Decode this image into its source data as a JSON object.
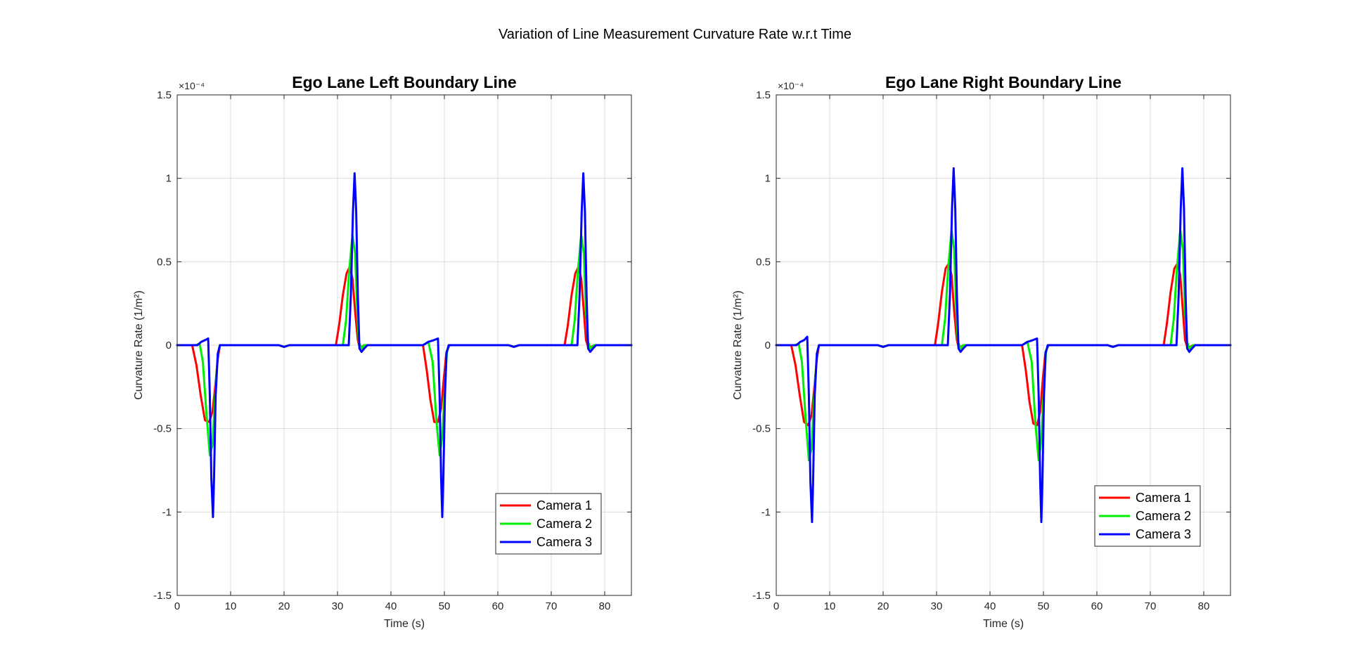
{
  "figure_title": "Variation of Line Measurement Curvature Rate w.r.t Time",
  "chart_data": [
    {
      "type": "line",
      "title": "Ego Lane Left Boundary Line",
      "xlabel": "Time (s)",
      "ylabel": "Curvature Rate (1/m²)",
      "y_multiplier": "×10⁻⁴",
      "xlim": [
        0,
        85
      ],
      "ylim": [
        -1.5,
        1.5
      ],
      "xticks": [
        0,
        10,
        20,
        30,
        40,
        50,
        60,
        70,
        80
      ],
      "yticks": [
        -1.5,
        -1,
        -0.5,
        0,
        0.5,
        1,
        1.5
      ],
      "ytick_labels": [
        "-1.5",
        "-1",
        "-0.5",
        "0",
        "0.5",
        "1",
        "1.5"
      ],
      "grid": true,
      "legend_position": "bottom-right",
      "series": [
        {
          "name": "Camera 1",
          "color": "#ff0000",
          "x": [
            0,
            2.8,
            3.6,
            4.4,
            5.2,
            6,
            6.6,
            7.1,
            7.6,
            8,
            19,
            20,
            21,
            29.7,
            30.3,
            31,
            31.7,
            32.3,
            32.8,
            33.3,
            33.8,
            34.2,
            35,
            46,
            46.7,
            47.4,
            48.1,
            48.8,
            49.4,
            49.9,
            50.4,
            51,
            62,
            63,
            64,
            72.5,
            73.1,
            73.8,
            74.5,
            75.1,
            75.6,
            76.1,
            76.5,
            77,
            78,
            85
          ],
          "y": [
            0,
            0,
            -0.12,
            -0.3,
            -0.45,
            -0.46,
            -0.4,
            -0.25,
            -0.08,
            0,
            0,
            -0.01,
            0,
            0,
            0.12,
            0.3,
            0.43,
            0.47,
            0.4,
            0.2,
            0.03,
            -0.02,
            0,
            0,
            -0.15,
            -0.33,
            -0.46,
            -0.46,
            -0.38,
            -0.2,
            -0.04,
            0,
            0,
            -0.01,
            0,
            0,
            0.12,
            0.3,
            0.43,
            0.47,
            0.4,
            0.2,
            0.03,
            -0.02,
            0,
            0
          ]
        },
        {
          "name": "Camera 2",
          "color": "#00ee00",
          "x": [
            0,
            3.5,
            4.2,
            4.8,
            5.5,
            6.1,
            6.6,
            7.1,
            7.6,
            8,
            19,
            20,
            21,
            31,
            31.6,
            32.2,
            32.8,
            33.3,
            33.7,
            34,
            34.5,
            35,
            46,
            47,
            47.8,
            48.5,
            49.1,
            49.6,
            50.1,
            50.5,
            51,
            62,
            63,
            64,
            73.8,
            74.4,
            75,
            75.6,
            76.1,
            76.5,
            76.9,
            77.3,
            78,
            85
          ],
          "y": [
            0,
            0,
            0.01,
            -0.1,
            -0.42,
            -0.66,
            -0.6,
            -0.3,
            -0.05,
            0,
            0,
            -0.01,
            0,
            0,
            0.15,
            0.45,
            0.66,
            0.55,
            0.2,
            0.02,
            -0.02,
            0,
            0,
            0.02,
            -0.1,
            -0.45,
            -0.66,
            -0.55,
            -0.25,
            -0.03,
            0,
            0,
            -0.01,
            0,
            0,
            0.15,
            0.45,
            0.66,
            0.55,
            0.2,
            0.02,
            -0.02,
            0,
            0
          ]
        },
        {
          "name": "Camera 3",
          "color": "#0000ff",
          "x": [
            0,
            3.8,
            4.5,
            5.2,
            5.8,
            6.1,
            6.4,
            6.7,
            6.9,
            7.2,
            7.6,
            8,
            19,
            20,
            21,
            32.1,
            32.5,
            32.9,
            33.2,
            33.5,
            33.8,
            34.1,
            34.5,
            35,
            35.6,
            46,
            47,
            48,
            48.8,
            49.1,
            49.4,
            49.6,
            49.8,
            50.1,
            50.4,
            50.8,
            62,
            63,
            64,
            74.9,
            75.3,
            75.7,
            76,
            76.3,
            76.6,
            76.9,
            77.3,
            77.8,
            78.4,
            85
          ],
          "y": [
            0,
            0,
            0.02,
            0.03,
            0.04,
            -0.3,
            -0.8,
            -1.03,
            -0.8,
            -0.3,
            -0.05,
            0,
            0,
            -0.01,
            0,
            0,
            0.3,
            0.8,
            1.03,
            0.8,
            0.3,
            -0.02,
            -0.04,
            -0.02,
            0,
            0,
            0.02,
            0.03,
            0.04,
            -0.3,
            -0.8,
            -1.03,
            -0.8,
            -0.3,
            -0.05,
            0,
            0,
            -0.01,
            0,
            0,
            0.3,
            0.8,
            1.03,
            0.8,
            0.3,
            -0.02,
            -0.04,
            -0.02,
            0,
            0
          ]
        }
      ]
    },
    {
      "type": "line",
      "title": "Ego Lane Right Boundary Line",
      "xlabel": "Time (s)",
      "ylabel": "Curvature Rate (1/m²)",
      "y_multiplier": "×10⁻⁴",
      "xlim": [
        0,
        85
      ],
      "ylim": [
        -1.5,
        1.5
      ],
      "xticks": [
        0,
        10,
        20,
        30,
        40,
        50,
        60,
        70,
        80
      ],
      "yticks": [
        -1.5,
        -1,
        -0.5,
        0,
        0.5,
        1,
        1.5
      ],
      "ytick_labels": [
        "-1.5",
        "-1",
        "-0.5",
        "0",
        "0.5",
        "1",
        "1.5"
      ],
      "grid": true,
      "legend_position": "bottom-right",
      "series": [
        {
          "name": "Camera 1",
          "color": "#ff0000",
          "x": [
            0,
            2.8,
            3.6,
            4.4,
            5.2,
            6,
            6.6,
            7.1,
            7.6,
            8,
            19,
            20,
            21,
            29.7,
            30.3,
            31,
            31.7,
            32.3,
            32.8,
            33.3,
            33.8,
            34.2,
            35,
            46,
            46.7,
            47.4,
            48.1,
            48.8,
            49.4,
            49.9,
            50.4,
            51,
            62,
            63,
            64,
            72.5,
            73.1,
            73.8,
            74.5,
            75.1,
            75.6,
            76.1,
            76.5,
            77,
            78,
            85
          ],
          "y": [
            0,
            0,
            -0.12,
            -0.3,
            -0.46,
            -0.48,
            -0.42,
            -0.26,
            -0.08,
            0,
            0,
            -0.01,
            0,
            0,
            0.13,
            0.32,
            0.46,
            0.49,
            0.42,
            0.2,
            0.03,
            -0.02,
            0,
            0,
            -0.15,
            -0.34,
            -0.47,
            -0.48,
            -0.4,
            -0.2,
            -0.04,
            0,
            0,
            -0.01,
            0,
            0,
            0.13,
            0.32,
            0.46,
            0.49,
            0.42,
            0.2,
            0.03,
            -0.02,
            0,
            0
          ]
        },
        {
          "name": "Camera 2",
          "color": "#00ee00",
          "x": [
            0,
            3.5,
            4.2,
            4.8,
            5.5,
            6.1,
            6.6,
            7.1,
            7.6,
            8,
            19,
            20,
            21,
            31,
            31.6,
            32.2,
            32.8,
            33.3,
            33.7,
            34,
            34.5,
            35,
            46,
            47,
            47.8,
            48.5,
            49.1,
            49.6,
            50.1,
            50.5,
            51,
            62,
            63,
            64,
            73.8,
            74.4,
            75,
            75.6,
            76.1,
            76.5,
            76.9,
            77.3,
            78,
            85
          ],
          "y": [
            0,
            0,
            0.01,
            -0.1,
            -0.44,
            -0.69,
            -0.62,
            -0.3,
            -0.05,
            0,
            0,
            -0.01,
            0,
            0,
            0.16,
            0.47,
            0.69,
            0.57,
            0.2,
            0.02,
            -0.02,
            0,
            0,
            0.02,
            -0.1,
            -0.47,
            -0.69,
            -0.57,
            -0.25,
            -0.03,
            0,
            0,
            -0.01,
            0,
            0,
            0.16,
            0.47,
            0.69,
            0.57,
            0.2,
            0.02,
            -0.02,
            0,
            0
          ]
        },
        {
          "name": "Camera 3",
          "color": "#0000ff",
          "x": [
            0,
            3.8,
            4.5,
            5.2,
            5.8,
            6.1,
            6.4,
            6.7,
            6.9,
            7.2,
            7.6,
            8,
            19,
            20,
            21,
            32.1,
            32.5,
            32.9,
            33.2,
            33.5,
            33.8,
            34.1,
            34.5,
            35,
            35.6,
            46,
            47,
            48,
            48.8,
            49.1,
            49.4,
            49.6,
            49.8,
            50.1,
            50.4,
            50.8,
            62,
            63,
            64,
            74.9,
            75.3,
            75.7,
            76,
            76.3,
            76.6,
            76.9,
            77.3,
            77.8,
            78.4,
            85
          ],
          "y": [
            0,
            0,
            0.02,
            0.03,
            0.05,
            -0.3,
            -0.82,
            -1.06,
            -0.82,
            -0.3,
            -0.05,
            0,
            0,
            -0.01,
            0,
            0,
            0.3,
            0.82,
            1.06,
            0.82,
            0.3,
            -0.02,
            -0.04,
            -0.02,
            0,
            0,
            0.02,
            0.03,
            0.04,
            -0.3,
            -0.82,
            -1.06,
            -0.82,
            -0.3,
            -0.05,
            0,
            0,
            -0.01,
            0,
            0,
            0.3,
            0.82,
            1.06,
            0.82,
            0.3,
            -0.02,
            -0.04,
            -0.02,
            0,
            0
          ]
        }
      ]
    }
  ]
}
